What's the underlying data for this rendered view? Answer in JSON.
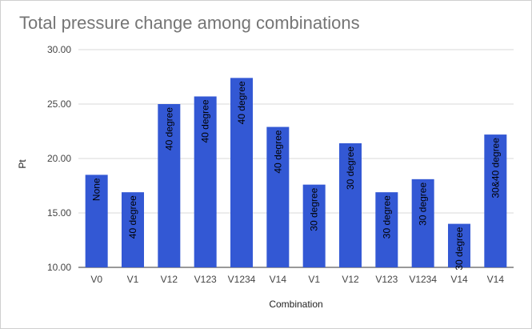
{
  "chart_data": {
    "type": "bar",
    "title": "Total pressure change among combinations",
    "xlabel": "Combination",
    "ylabel": "Pt",
    "ylim": [
      10,
      30
    ],
    "yticks": [
      "10.00",
      "15.00",
      "20.00",
      "25.00",
      "30.00"
    ],
    "grid": true,
    "legend": "none",
    "bar_color": "#3358d4",
    "categories": [
      "V0",
      "V1",
      "V12",
      "V123",
      "V1234",
      "V14",
      "V1",
      "V12",
      "V123",
      "V1234",
      "V14",
      "V14"
    ],
    "values": [
      18.5,
      16.9,
      25.0,
      25.7,
      27.4,
      22.9,
      17.6,
      21.4,
      16.9,
      18.1,
      14.0,
      22.2
    ],
    "data_labels": [
      "None",
      "40 degree",
      "40 degree",
      "40 degree",
      "40 degree",
      "40 degree",
      "30 degree",
      "30 degree",
      "30 degree",
      "30 degree",
      "30 degree",
      "30&40 degree"
    ]
  }
}
